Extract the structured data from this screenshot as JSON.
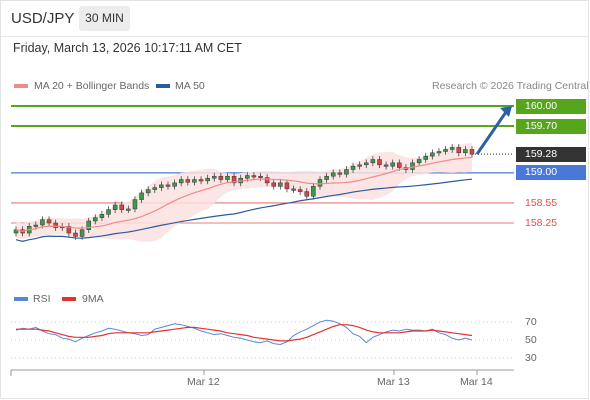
{
  "header": {
    "pair": "USD/JPY",
    "timeframe": "30 MIN"
  },
  "timestamp": "Friday, March 13, 2026 10:17:11 AM CET",
  "legend": {
    "ma20_bb": "MA 20 + Bollinger Bands",
    "ma50": "MA 50",
    "credit": "Research © 2026 Trading Central",
    "rsi": "RSI",
    "ma9": "9MA"
  },
  "colors": {
    "bollinger": "#f08b8b",
    "ma50": "#2d5a9e",
    "resistance": "#56a51c",
    "pivot": "#4a78d8",
    "support": "#e35050",
    "current": "#333333",
    "rsi": "#5a86d8",
    "rsi_ma": "#e03333",
    "arrow": "#2d5fa8"
  },
  "levels": [
    {
      "value": "160.00",
      "kind": "resistance"
    },
    {
      "value": "159.70",
      "kind": "resistance"
    },
    {
      "value": "159.28",
      "kind": "current"
    },
    {
      "value": "159.00",
      "kind": "pivot"
    },
    {
      "value": "158.55",
      "kind": "support"
    },
    {
      "value": "158.25",
      "kind": "support"
    }
  ],
  "rsi_axis": [
    "70",
    "50",
    "30"
  ],
  "x_axis": [
    "Mar 12",
    "Mar 13",
    "Mar 14"
  ],
  "chart_data": {
    "type": "candlestick",
    "series_note": "30 MIN",
    "price_levels": [
      160.0,
      159.7,
      159.28,
      159.0,
      158.55,
      158.25
    ],
    "last_price": 159.28,
    "projection": {
      "from": 159.28,
      "to": 160.0
    },
    "close": [
      158.15,
      158.1,
      158.2,
      158.22,
      158.3,
      158.25,
      158.18,
      158.2,
      158.1,
      158.05,
      158.15,
      158.28,
      158.33,
      158.38,
      158.45,
      158.52,
      158.45,
      158.46,
      158.6,
      158.7,
      158.75,
      158.78,
      158.82,
      158.8,
      158.85,
      158.9,
      158.86,
      158.9,
      158.88,
      158.92,
      158.95,
      158.9,
      158.95,
      158.85,
      158.92,
      158.96,
      158.95,
      158.93,
      158.85,
      158.8,
      158.85,
      158.76,
      158.75,
      158.72,
      158.65,
      158.8,
      158.9,
      158.95,
      159.0,
      158.98,
      159.05,
      159.1,
      159.12,
      159.15,
      159.2,
      159.12,
      159.1,
      159.15,
      159.08,
      159.05,
      159.15,
      159.2,
      159.25,
      159.3,
      159.32,
      159.35,
      159.38,
      159.3,
      159.35,
      159.28
    ],
    "rsi": [
      61,
      63,
      62,
      64,
      60,
      57,
      56,
      52,
      51,
      48,
      52,
      55,
      58,
      60,
      63,
      62,
      60,
      58,
      57,
      55,
      56,
      62,
      64,
      66,
      68,
      67,
      65,
      63,
      60,
      58,
      56,
      57,
      55,
      53,
      52,
      50,
      48,
      47,
      49,
      46,
      45,
      48,
      55,
      59,
      62,
      66,
      70,
      72,
      71,
      68,
      64,
      57,
      54,
      47,
      53,
      56,
      59,
      61,
      60,
      62,
      61,
      61,
      60,
      62,
      58,
      56,
      52,
      50,
      52,
      50
    ],
    "rsi_ma": [
      62,
      62,
      62,
      62,
      61,
      60,
      58,
      56,
      54,
      53,
      53,
      53,
      54,
      55,
      57,
      58,
      58,
      58,
      58,
      58,
      58,
      59,
      60,
      61,
      62,
      63,
      64,
      64,
      63,
      62,
      61,
      60,
      58,
      57,
      56,
      55,
      53,
      52,
      51,
      50,
      49,
      49,
      50,
      51,
      53,
      56,
      59,
      62,
      65,
      67,
      67,
      66,
      64,
      61,
      59,
      58,
      58,
      58,
      58,
      59,
      60,
      60,
      60,
      61,
      60,
      59,
      58,
      57,
      56,
      55
    ]
  }
}
